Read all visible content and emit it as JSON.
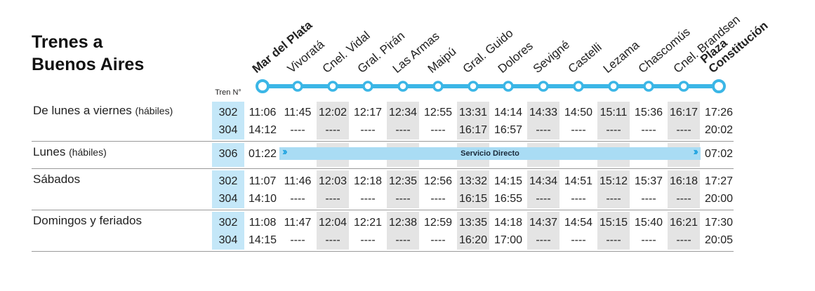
{
  "header": {
    "title_lines": [
      "Trenes a",
      "Buenos Aires"
    ],
    "train_column_label": "Tren N°"
  },
  "stations": [
    "Mar del Plata",
    "Vivoratá",
    "Cnel. Vidal",
    "Gral. Pirán",
    "Las Armas",
    "Maipú",
    "Gral. Guido",
    "Dolores",
    "Sevigné",
    "Castelli",
    "Lezama",
    "Chascomús",
    "Cnel. Brandsen",
    "Plaza Constitución"
  ],
  "schedules": [
    {
      "day": "De lunes a viernes",
      "day_note": "(hábiles)",
      "trains": [
        {
          "number": 302,
          "times": [
            "11:06",
            "11:45",
            "12:02",
            "12:17",
            "12:34",
            "12:55",
            "13:31",
            "14:14",
            "14:33",
            "14:50",
            "15:11",
            "15:36",
            "16:17",
            "17:26"
          ]
        },
        {
          "number": 304,
          "times": [
            "14:12",
            "----",
            "----",
            "----",
            "----",
            "----",
            "16:17",
            "16:57",
            "----",
            "----",
            "----",
            "----",
            "----",
            "20:02"
          ]
        }
      ]
    },
    {
      "day": "Lunes",
      "day_note": "(hábiles)",
      "express_label": "Servicio Directo",
      "trains": [
        {
          "number": 306,
          "times": [
            "01:22",
            "07:02"
          ]
        }
      ]
    },
    {
      "day": "Sábados",
      "trains": [
        {
          "number": 302,
          "times": [
            "11:07",
            "11:46",
            "12:03",
            "12:18",
            "12:35",
            "12:56",
            "13:32",
            "14:15",
            "14:34",
            "14:51",
            "15:12",
            "15:37",
            "16:18",
            "17:27"
          ]
        },
        {
          "number": 304,
          "times": [
            "14:10",
            "----",
            "----",
            "----",
            "----",
            "----",
            "16:15",
            "16:55",
            "----",
            "----",
            "----",
            "----",
            "----",
            "20:00"
          ]
        }
      ]
    },
    {
      "day": "Domingos y feriados",
      "trains": [
        {
          "number": 302,
          "times": [
            "11:08",
            "11:47",
            "12:04",
            "12:21",
            "12:38",
            "12:59",
            "13:35",
            "14:18",
            "14:37",
            "14:54",
            "15:15",
            "15:40",
            "16:21",
            "17:30"
          ]
        },
        {
          "number": 304,
          "times": [
            "14:15",
            "----",
            "----",
            "----",
            "----",
            "----",
            "16:20",
            "17:00",
            "----",
            "----",
            "----",
            "----",
            "----",
            "20:05"
          ]
        }
      ]
    }
  ]
}
